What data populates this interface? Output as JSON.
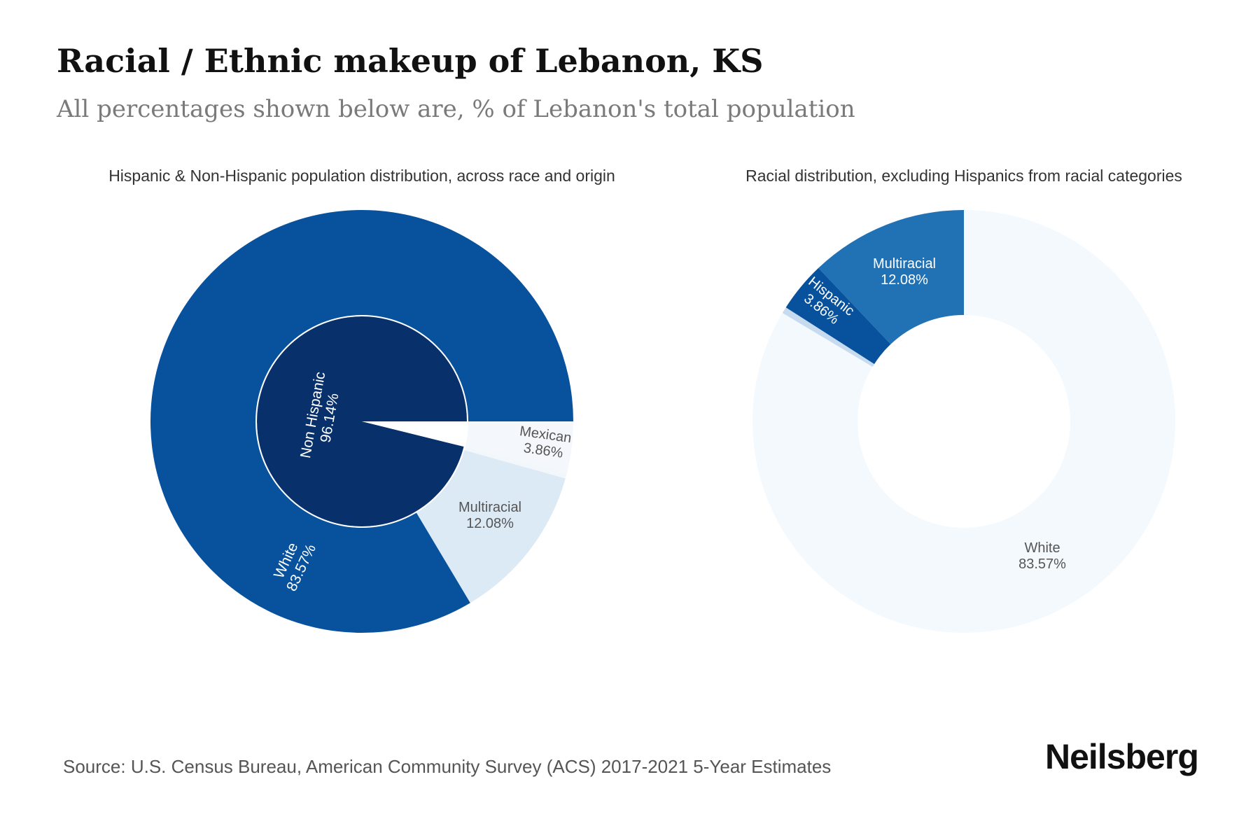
{
  "header": {
    "title": "Racial / Ethnic makeup of Lebanon, KS",
    "subtitle": "All percentages shown below are, % of Lebanon's total population"
  },
  "chart_data": [
    {
      "type": "pie",
      "title": "Hispanic & Non-Hispanic population distribution, across race and origin",
      "inner_ring": [
        {
          "label": "Non Hispanic",
          "value": 96.14,
          "value_label": "96.14%",
          "color": "#08306b"
        },
        {
          "label": "",
          "value": 3.86,
          "value_label": "",
          "color": "#ffffff"
        }
      ],
      "outer_ring": [
        {
          "label": "White",
          "value": 83.57,
          "value_label": "83.57%",
          "color": "#08519c"
        },
        {
          "label": "Multiracial",
          "value": 12.08,
          "value_label": "12.08%",
          "color": "#dceaf6"
        },
        {
          "label": "",
          "value": 0.49,
          "value_label": "",
          "color": "#f2f7fc"
        },
        {
          "label": "Mexican",
          "value": 3.86,
          "value_label": "3.86%",
          "color": "#f4f8fc"
        }
      ]
    },
    {
      "type": "pie",
      "title": "Racial distribution, excluding Hispanics from racial categories",
      "slices": [
        {
          "label": "Multiracial",
          "value": 12.08,
          "value_label": "12.08%",
          "color": "#2171b5"
        },
        {
          "label": "Hispanic",
          "value": 3.86,
          "value_label": "3.86%",
          "color": "#08519c"
        },
        {
          "label": "",
          "value": 0.49,
          "value_label": "",
          "color": "#c6dbef"
        },
        {
          "label": "White",
          "value": 83.57,
          "value_label": "83.57%",
          "color": "#f4f9fe"
        }
      ]
    }
  ],
  "footer": {
    "source": "Source: U.S. Census Bureau, American Community Survey (ACS) 2017-2021 5-Year Estimates",
    "brand": "Neilsberg"
  }
}
